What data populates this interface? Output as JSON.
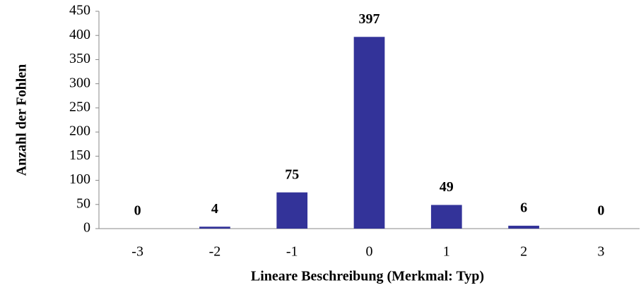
{
  "chart_data": {
    "type": "bar",
    "xlabel": "Lineare Beschreibung (Merkmal: Typ)",
    "ylabel": "Anzahl der Fohlen",
    "categories": [
      "-3",
      "-2",
      "-1",
      "0",
      "1",
      "2",
      "3"
    ],
    "values": [
      0,
      4,
      75,
      397,
      49,
      6,
      0
    ],
    "color": "#333399",
    "ylim": [
      0,
      450
    ],
    "yticks": [
      0,
      50,
      100,
      150,
      200,
      250,
      300,
      350,
      400,
      450
    ],
    "grid": false,
    "data_labels": true
  }
}
